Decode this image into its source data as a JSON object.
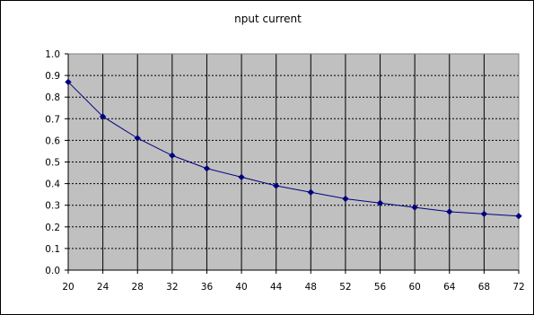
{
  "chart_data": {
    "type": "line",
    "title": "nput current",
    "xlabel": "",
    "ylabel": "",
    "x": [
      20,
      24,
      28,
      32,
      36,
      40,
      44,
      48,
      52,
      56,
      60,
      64,
      68,
      72
    ],
    "series": [
      {
        "values": [
          0.87,
          0.71,
          0.61,
          0.53,
          0.47,
          0.43,
          0.39,
          0.36,
          0.33,
          0.31,
          0.29,
          0.27,
          0.26,
          0.25
        ]
      }
    ],
    "x_tick_labels": [
      "20",
      "24",
      "28",
      "32",
      "36",
      "40",
      "44",
      "48",
      "52",
      "56",
      "60",
      "64",
      "68",
      "72"
    ],
    "y_tick_labels": [
      "0.0",
      "0.1",
      "0.2",
      "0.3",
      "0.4",
      "0.5",
      "0.6",
      "0.7",
      "0.8",
      "0.9",
      "1.0"
    ],
    "ylim": [
      0,
      1.0
    ],
    "xlim": [
      20,
      72
    ],
    "grid": true,
    "legend": "none",
    "colors": {
      "plot_background": "#c0c0c0",
      "series_line": "#000080",
      "gridline": "#000000"
    }
  }
}
